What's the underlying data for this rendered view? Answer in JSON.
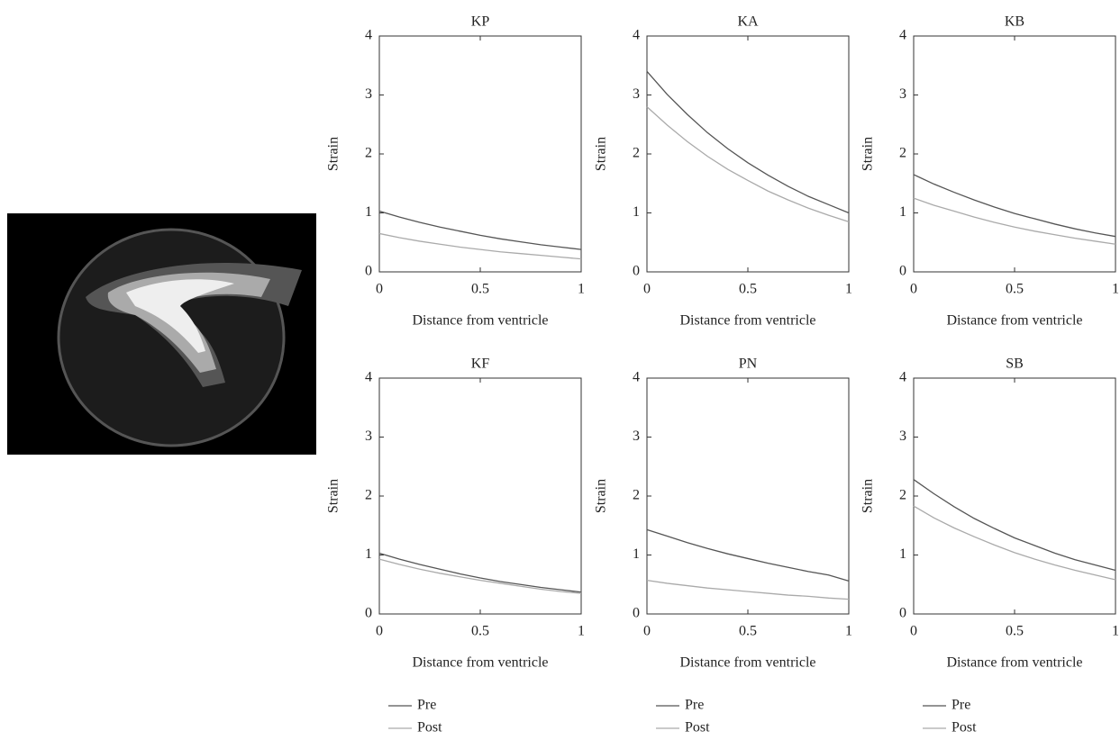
{
  "chart_data": [
    {
      "type": "line",
      "title": "KP",
      "xlabel": "Distance from ventricle",
      "ylabel": "Strain",
      "x": [
        0,
        0.1,
        0.2,
        0.3,
        0.4,
        0.5,
        0.6,
        0.7,
        0.8,
        0.9,
        1
      ],
      "series": [
        {
          "color": "#555555",
          "values": [
            1.03,
            0.93,
            0.84,
            0.76,
            0.69,
            0.62,
            0.56,
            0.51,
            0.46,
            0.42,
            0.38
          ]
        },
        {
          "color": "#aaaaaa",
          "values": [
            0.65,
            0.58,
            0.52,
            0.47,
            0.42,
            0.38,
            0.34,
            0.31,
            0.28,
            0.25,
            0.22
          ]
        }
      ],
      "xlim": [
        0,
        1
      ],
      "xticks": [
        0,
        0.5,
        1
      ],
      "ylim": [
        0,
        4
      ],
      "yticks": [
        0,
        1,
        2,
        3,
        4
      ]
    },
    {
      "type": "line",
      "title": "KA",
      "xlabel": "Distance from ventricle",
      "ylabel": "Strain",
      "x": [
        0,
        0.1,
        0.2,
        0.3,
        0.4,
        0.5,
        0.6,
        0.7,
        0.8,
        0.9,
        1
      ],
      "series": [
        {
          "color": "#555555",
          "values": [
            3.4,
            3.01,
            2.67,
            2.36,
            2.09,
            1.85,
            1.64,
            1.45,
            1.28,
            1.14,
            1.0
          ]
        },
        {
          "color": "#aaaaaa",
          "values": [
            2.8,
            2.49,
            2.21,
            1.96,
            1.74,
            1.55,
            1.37,
            1.22,
            1.08,
            0.96,
            0.85
          ]
        }
      ],
      "xlim": [
        0,
        1
      ],
      "xticks": [
        0,
        0.5,
        1
      ],
      "ylim": [
        0,
        4
      ],
      "yticks": [
        0,
        1,
        2,
        3,
        4
      ]
    },
    {
      "type": "line",
      "title": "KB",
      "xlabel": "Distance from ventricle",
      "ylabel": "Strain",
      "x": [
        0,
        0.1,
        0.2,
        0.3,
        0.4,
        0.5,
        0.6,
        0.7,
        0.8,
        0.9,
        1
      ],
      "series": [
        {
          "color": "#555555",
          "values": [
            1.65,
            1.49,
            1.35,
            1.22,
            1.1,
            0.99,
            0.9,
            0.81,
            0.73,
            0.66,
            0.6
          ]
        },
        {
          "color": "#aaaaaa",
          "values": [
            1.25,
            1.13,
            1.03,
            0.93,
            0.84,
            0.76,
            0.69,
            0.63,
            0.57,
            0.52,
            0.47
          ]
        }
      ],
      "xlim": [
        0,
        1
      ],
      "xticks": [
        0,
        0.5,
        1
      ],
      "ylim": [
        0,
        4
      ],
      "yticks": [
        0,
        1,
        2,
        3,
        4
      ]
    },
    {
      "type": "line",
      "title": "KF",
      "xlabel": "Distance from ventricle",
      "ylabel": "Strain",
      "x": [
        0,
        0.1,
        0.2,
        0.3,
        0.4,
        0.5,
        0.6,
        0.7,
        0.8,
        0.9,
        1
      ],
      "series": [
        {
          "name": "Pre",
          "color": "#555555",
          "values": [
            1.03,
            0.93,
            0.84,
            0.76,
            0.68,
            0.61,
            0.55,
            0.5,
            0.45,
            0.41,
            0.37
          ]
        },
        {
          "name": "Post",
          "color": "#aaaaaa",
          "values": [
            0.93,
            0.84,
            0.76,
            0.69,
            0.63,
            0.57,
            0.52,
            0.47,
            0.42,
            0.38,
            0.35
          ]
        }
      ],
      "xlim": [
        0,
        1
      ],
      "xticks": [
        0,
        0.5,
        1
      ],
      "ylim": [
        0,
        4
      ],
      "yticks": [
        0,
        1,
        2,
        3,
        4
      ],
      "legend": "below"
    },
    {
      "type": "line",
      "title": "PN",
      "xlabel": "Distance from ventricle",
      "ylabel": "Strain",
      "x": [
        0,
        0.1,
        0.2,
        0.3,
        0.4,
        0.5,
        0.6,
        0.7,
        0.8,
        0.9,
        1
      ],
      "series": [
        {
          "name": "Pre",
          "color": "#555555",
          "values": [
            1.43,
            1.32,
            1.21,
            1.11,
            1.02,
            0.94,
            0.86,
            0.79,
            0.72,
            0.66,
            0.56
          ]
        },
        {
          "name": "Post",
          "color": "#aaaaaa",
          "values": [
            0.57,
            0.52,
            0.48,
            0.44,
            0.41,
            0.38,
            0.35,
            0.32,
            0.3,
            0.27,
            0.25
          ]
        }
      ],
      "xlim": [
        0,
        1
      ],
      "xticks": [
        0,
        0.5,
        1
      ],
      "ylim": [
        0,
        4
      ],
      "yticks": [
        0,
        1,
        2,
        3,
        4
      ],
      "legend": "below"
    },
    {
      "type": "line",
      "title": "SB",
      "xlabel": "Distance from ventricle",
      "ylabel": "Strain",
      "x": [
        0,
        0.1,
        0.2,
        0.3,
        0.4,
        0.5,
        0.6,
        0.7,
        0.8,
        0.9,
        1
      ],
      "series": [
        {
          "name": "Pre",
          "color": "#555555",
          "values": [
            2.28,
            2.04,
            1.82,
            1.62,
            1.45,
            1.29,
            1.16,
            1.03,
            0.92,
            0.83,
            0.74
          ]
        },
        {
          "name": "Post",
          "color": "#aaaaaa",
          "values": [
            1.83,
            1.63,
            1.46,
            1.31,
            1.17,
            1.04,
            0.93,
            0.83,
            0.74,
            0.66,
            0.58
          ]
        }
      ],
      "xlim": [
        0,
        1
      ],
      "xticks": [
        0,
        0.5,
        1
      ],
      "ylim": [
        0,
        4
      ],
      "yticks": [
        0,
        1,
        2,
        3,
        4
      ],
      "legend": "below"
    }
  ]
}
